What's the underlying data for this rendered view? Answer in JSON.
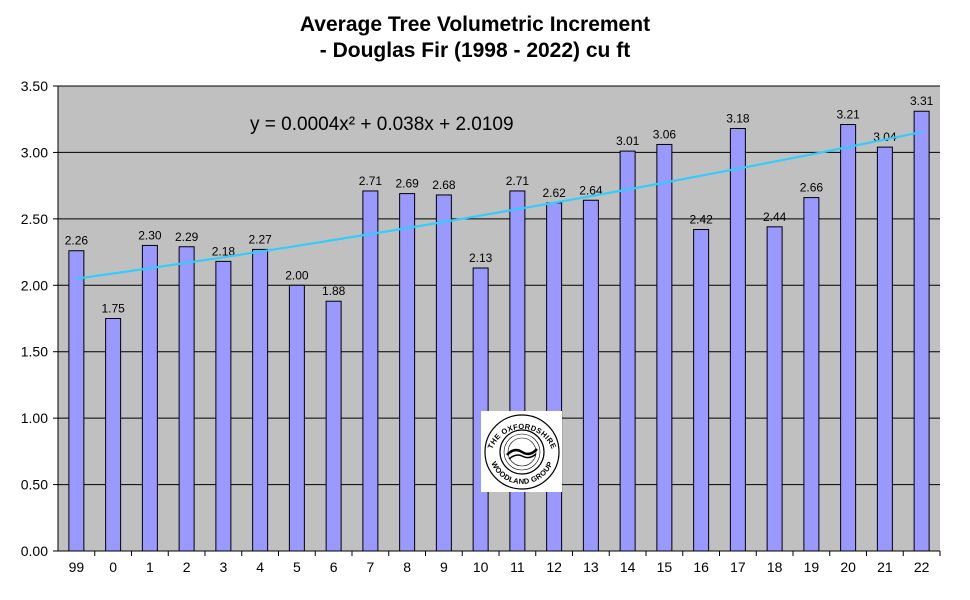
{
  "chart_data": {
    "type": "bar",
    "title_line1": "Average Tree Volumetric Increment",
    "title_line2": "- Douglas Fir (1998 - 2022) cu ft",
    "xlabel": "",
    "ylabel": "",
    "ylim": [
      0,
      3.5
    ],
    "ytick_step": 0.5,
    "ytick_labels": [
      "0.00",
      "0.50",
      "1.00",
      "1.50",
      "2.00",
      "2.50",
      "3.00",
      "3.50"
    ],
    "grid": true,
    "categories": [
      "99",
      "0",
      "1",
      "2",
      "3",
      "4",
      "5",
      "6",
      "7",
      "8",
      "9",
      "10",
      "11",
      "12",
      "13",
      "14",
      "15",
      "16",
      "17",
      "18",
      "19",
      "20",
      "21",
      "22"
    ],
    "values": [
      2.26,
      1.75,
      2.3,
      2.29,
      2.18,
      2.27,
      2.0,
      1.88,
      2.71,
      2.69,
      2.68,
      2.13,
      2.71,
      2.62,
      2.64,
      3.01,
      3.06,
      2.42,
      3.18,
      2.44,
      2.66,
      3.21,
      3.04,
      3.31
    ],
    "value_labels": [
      "2.26",
      "1.75",
      "2.30",
      "2.29",
      "2.18",
      "2.27",
      "2.00",
      "1.88",
      "2.71",
      "2.69",
      "2.68",
      "2.13",
      "2.71",
      "2.62",
      "2.64",
      "3.01",
      "3.06",
      "2.42",
      "3.18",
      "2.44",
      "2.66",
      "3.21",
      "3.04",
      "3.31"
    ],
    "trendline": {
      "type": "polynomial",
      "a": 0.0004,
      "b": 0.038,
      "c": 2.0109,
      "equation_label": "y = 0.0004x² + 0.038x + 2.0109"
    },
    "colors": {
      "plot_background": "#c0c0c0",
      "bar_fill": "#9999ff",
      "bar_stroke": "#000000",
      "trendline": "#33ccff",
      "gridline": "#000000"
    }
  },
  "logo": {
    "text_top": "THE OXFORDSHIRE",
    "text_bottom": "WOODLAND GROUP"
  }
}
